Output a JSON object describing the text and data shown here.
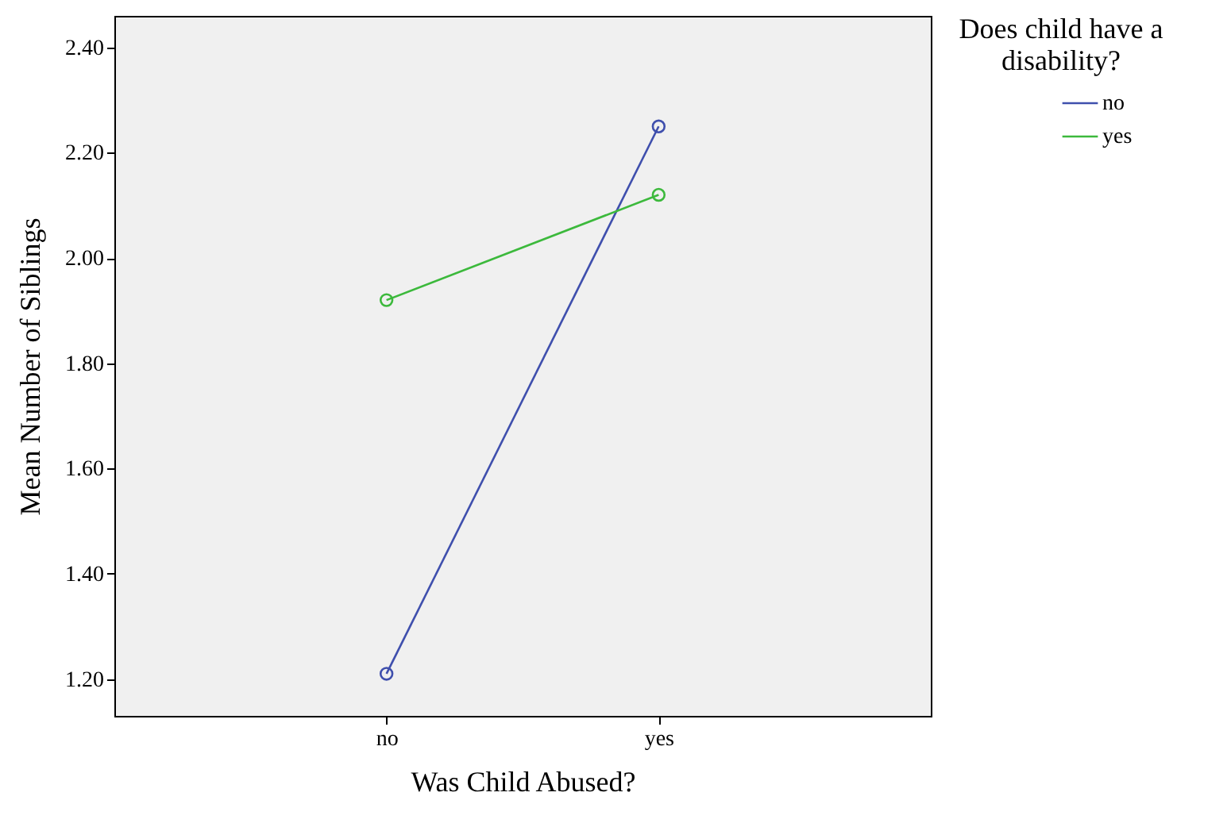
{
  "chart_data": {
    "type": "line",
    "xlabel": "Was Child Abused?",
    "ylabel": "Mean Number of Siblings",
    "legend_title": "Does child have a disability?",
    "categories": [
      "no",
      "yes"
    ],
    "series": [
      {
        "name": "no",
        "color": "#3f4fad",
        "values": [
          1.21,
          2.25
        ]
      },
      {
        "name": "yes",
        "color": "#3cb93c",
        "values": [
          1.92,
          2.12
        ]
      }
    ],
    "ylim": [
      1.13,
      2.46
    ],
    "yticks": [
      {
        "value": 1.2,
        "label": "1.20"
      },
      {
        "value": 1.4,
        "label": "1.40"
      },
      {
        "value": 1.6,
        "label": "1.60"
      },
      {
        "value": 1.8,
        "label": "1.80"
      },
      {
        "value": 2.0,
        "label": "2.00"
      },
      {
        "value": 2.2,
        "label": "2.20"
      },
      {
        "value": 2.4,
        "label": "2.40"
      }
    ],
    "grid": false,
    "legend": "top right",
    "marker": "circle",
    "line_style": "solid"
  }
}
